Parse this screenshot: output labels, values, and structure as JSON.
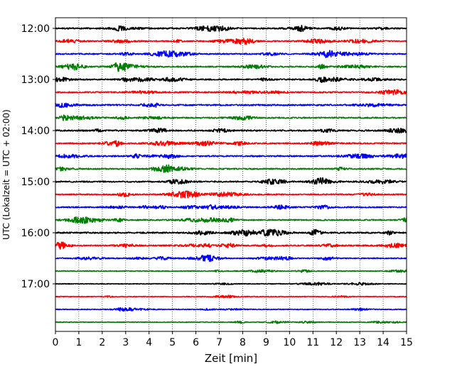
{
  "chart_data": {
    "type": "line",
    "title": "",
    "xlabel": "Zeit  [min]",
    "ylabel": "UTC (Lokalzeit = UTC + 02:00)",
    "xlim": [
      0,
      15
    ],
    "x_ticks": [
      "0",
      "1",
      "2",
      "3",
      "4",
      "5",
      "6",
      "7",
      "8",
      "9",
      "10",
      "11",
      "12",
      "13",
      "14",
      "15"
    ],
    "y_tick_labels": [
      "12:00",
      "13:00",
      "14:00",
      "15:00",
      "16:00",
      "17:00"
    ],
    "y_tick_trace_index": [
      0,
      4,
      8,
      12,
      16,
      20
    ],
    "trace_interval_min": 15,
    "trace_colors": [
      "#000000",
      "#ff0000",
      "#0000ff",
      "#008000"
    ],
    "grid": "vertical dotted at each minute",
    "series": [
      {
        "start": "12:00",
        "color": "#000000",
        "amplitude": 0.55
      },
      {
        "start": "12:15",
        "color": "#ff0000",
        "amplitude": 0.5
      },
      {
        "start": "12:30",
        "color": "#0000ff",
        "amplitude": 0.5
      },
      {
        "start": "12:45",
        "color": "#008000",
        "amplitude": 0.55
      },
      {
        "start": "13:00",
        "color": "#000000",
        "amplitude": 0.55
      },
      {
        "start": "13:15",
        "color": "#ff0000",
        "amplitude": 0.55
      },
      {
        "start": "13:30",
        "color": "#0000ff",
        "amplitude": 0.6
      },
      {
        "start": "13:45",
        "color": "#008000",
        "amplitude": 0.55
      },
      {
        "start": "14:00",
        "color": "#000000",
        "amplitude": 0.6
      },
      {
        "start": "14:15",
        "color": "#ff0000",
        "amplitude": 0.55
      },
      {
        "start": "14:30",
        "color": "#0000ff",
        "amplitude": 0.55
      },
      {
        "start": "14:45",
        "color": "#008000",
        "amplitude": 0.55
      },
      {
        "start": "15:00",
        "color": "#000000",
        "amplitude": 0.55
      },
      {
        "start": "15:15",
        "color": "#ff0000",
        "amplitude": 0.5
      },
      {
        "start": "15:30",
        "color": "#0000ff",
        "amplitude": 0.5
      },
      {
        "start": "15:45",
        "color": "#008000",
        "amplitude": 0.5
      },
      {
        "start": "16:00",
        "color": "#000000",
        "amplitude": 0.6
      },
      {
        "start": "16:15",
        "color": "#ff0000",
        "amplitude": 0.55
      },
      {
        "start": "16:30",
        "color": "#0000ff",
        "amplitude": 0.4
      },
      {
        "start": "16:45",
        "color": "#008000",
        "amplitude": 0.35
      },
      {
        "start": "17:00",
        "color": "#000000",
        "amplitude": 0.3
      },
      {
        "start": "17:15",
        "color": "#ff0000",
        "amplitude": 0.3
      },
      {
        "start": "17:30",
        "color": "#0000ff",
        "amplitude": 0.3
      },
      {
        "start": "17:45",
        "color": "#008000",
        "amplitude": 0.3
      }
    ]
  }
}
